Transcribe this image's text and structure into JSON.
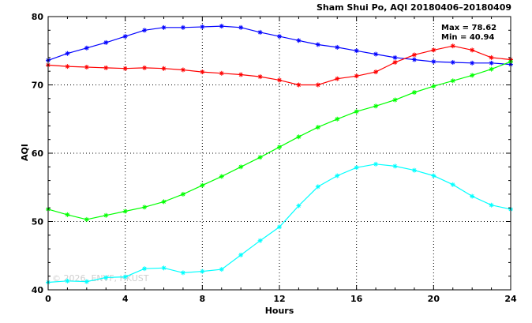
{
  "chart_data": {
    "type": "line",
    "title": "Sham Shui Po, AQI 20180406–20180409",
    "xlabel": "Hours",
    "ylabel": "AQI",
    "xlim": [
      0,
      24
    ],
    "ylim": [
      40,
      80
    ],
    "xticks": [
      "0",
      "4",
      "8",
      "12",
      "16",
      "20",
      "24"
    ],
    "yticks": [
      "40",
      "50",
      "60",
      "70",
      "80"
    ],
    "grid": "dotted at major ticks",
    "x": [
      0,
      1,
      2,
      3,
      4,
      5,
      6,
      7,
      8,
      9,
      10,
      11,
      12,
      13,
      14,
      15,
      16,
      17,
      18,
      19,
      20,
      21,
      22,
      23,
      24
    ],
    "series": [
      {
        "color": "#0000ff",
        "values": [
          73.6,
          74.6,
          75.4,
          76.2,
          77.1,
          78.0,
          78.4,
          78.4,
          78.5,
          78.6,
          78.4,
          77.7,
          77.1,
          76.5,
          75.9,
          75.5,
          75.0,
          74.5,
          74.0,
          73.7,
          73.4,
          73.3,
          73.2,
          73.2,
          73.0
        ]
      },
      {
        "color": "#ff0000",
        "values": [
          72.9,
          72.7,
          72.6,
          72.5,
          72.4,
          72.5,
          72.4,
          72.2,
          71.9,
          71.7,
          71.5,
          71.2,
          70.7,
          70.0,
          70.0,
          70.9,
          71.3,
          71.9,
          73.3,
          74.4,
          75.1,
          75.7,
          75.1,
          74.0,
          73.7
        ]
      },
      {
        "color": "#00ff00",
        "values": [
          51.8,
          51.0,
          50.3,
          50.9,
          51.5,
          52.1,
          52.9,
          54.0,
          55.3,
          56.6,
          58.0,
          59.4,
          60.9,
          62.4,
          63.8,
          65.0,
          66.1,
          66.9,
          67.8,
          68.9,
          69.8,
          70.6,
          71.4,
          72.3,
          73.4
        ]
      },
      {
        "color": "#00ffff",
        "values": [
          41.1,
          41.3,
          41.2,
          41.8,
          41.9,
          43.1,
          43.2,
          42.5,
          42.7,
          43.0,
          45.1,
          47.2,
          49.2,
          52.3,
          55.1,
          56.7,
          57.9,
          58.4,
          58.1,
          57.5,
          56.7,
          55.4,
          53.7,
          52.4,
          51.8
        ]
      }
    ],
    "annotations": {
      "max": "Max = 78.62",
      "min": "Min = 40.94"
    }
  },
  "watermark": "© 2026, ENVF, HKUST"
}
